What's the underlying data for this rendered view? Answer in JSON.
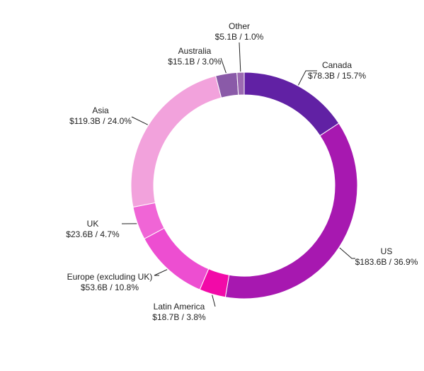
{
  "chart_data": {
    "type": "pie",
    "variant": "donut",
    "title": "",
    "categories": [
      "Canada",
      "US",
      "Latin America",
      "Europe (excluding UK)",
      "UK",
      "Asia",
      "Australia",
      "Other"
    ],
    "values": [
      78.3,
      183.6,
      18.7,
      53.6,
      23.6,
      119.3,
      15.1,
      5.1
    ],
    "percentages": [
      15.7,
      36.9,
      3.8,
      10.8,
      4.7,
      24.0,
      3.0,
      1.0
    ],
    "value_labels": [
      "$78.3B / 15.7%",
      "$183.6B / 36.9%",
      "$18.7B / 3.8%",
      "$53.6B / 10.8%",
      "$23.6B / 4.7%",
      "$119.3B / 24.0%",
      "$15.1B / 3.0%",
      "$5.1B / 1.0%"
    ],
    "colors": [
      "#6121a4",
      "#a718b0",
      "#f20aa8",
      "#ed4ed1",
      "#f065d6",
      "#f2a2dc",
      "#8a5aa8",
      "#9c6ab2"
    ],
    "start_angle": "top",
    "direction": "clockwise",
    "legend": "none"
  }
}
